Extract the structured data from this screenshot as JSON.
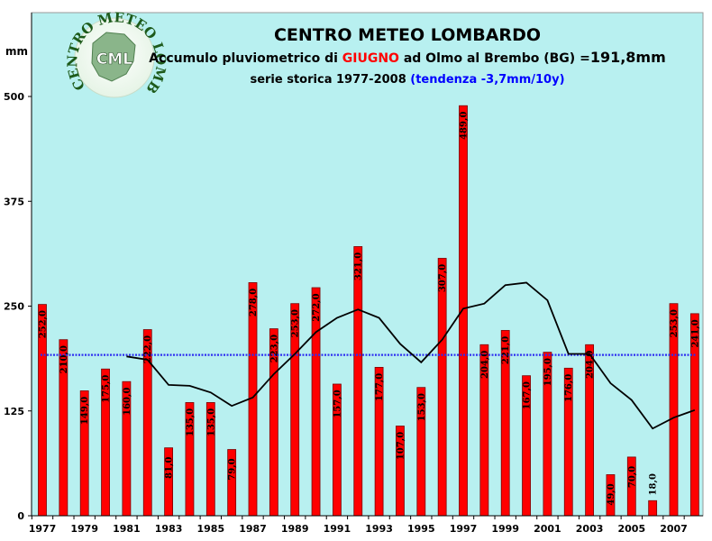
{
  "header": {
    "title": "CENTRO METEO LOMBARDO",
    "subtitle_prefix": "Accumulo pluviometrico di ",
    "subtitle_month": "GIUGNO",
    "subtitle_mid": " ad Olmo al Brembo (BG) =",
    "subtitle_total": "191,8mm",
    "series_text": "serie storica 1977-2008 ",
    "trend_text": "(tendenza -3,7mm/10y)"
  },
  "logo": {
    "ring_text": "CENTRO METEO LOMBARDO",
    "center_text": "CML"
  },
  "colors": {
    "plot_bg": "#b8f0f0",
    "bar_fill": "#ff0000",
    "bar_stroke": "#7a0000",
    "mean_line": "#2e2ef0",
    "moving_avg": "#000000",
    "month_highlight": "#ff0000",
    "trend_text": "#0000ff"
  },
  "chart_data": {
    "type": "bar",
    "title": "CENTRO METEO LOMBARDO",
    "ylabel": "mm",
    "ylim": [
      0,
      600
    ],
    "yticks": [
      0,
      125,
      250,
      375,
      500
    ],
    "x_tick_labels": [
      "1977",
      "1979",
      "1981",
      "1983",
      "1985",
      "1987",
      "1989",
      "1991",
      "1993",
      "1995",
      "1997",
      "1999",
      "2001",
      "2003",
      "2005",
      "2007"
    ],
    "categories": [
      "1977",
      "1978",
      "1979",
      "1980",
      "1981",
      "1982",
      "1983",
      "1984",
      "1985",
      "1986",
      "1987",
      "1988",
      "1989",
      "1990",
      "1991",
      "1992",
      "1993",
      "1994",
      "1995",
      "1996",
      "1997",
      "1998",
      "1999",
      "2000",
      "2001",
      "2002",
      "2003",
      "2004",
      "2005",
      "2006",
      "2007",
      "2008"
    ],
    "values": [
      252.0,
      210.0,
      149.0,
      175.0,
      160.0,
      222.0,
      81.0,
      135.0,
      135.0,
      79.0,
      278.0,
      223.0,
      253.0,
      272.0,
      157.0,
      321.0,
      177.0,
      107.0,
      153.0,
      307.0,
      489.0,
      204.0,
      221.0,
      167.0,
      195.0,
      176.0,
      204.0,
      49.0,
      70.0,
      18.0,
      253.0,
      241.0
    ],
    "data_labels": [
      "252,0",
      "210,0",
      "149,0",
      "175,0",
      "160,0",
      "222,0",
      "81,0",
      "135,0",
      "135,0",
      "79,0",
      "278,0",
      "223,0",
      "253,0",
      "272,0",
      "157,0",
      "321,0",
      "177,0",
      "107,0",
      "153,0",
      "307,0",
      "489,0",
      "204,0",
      "221,0",
      "167,0",
      "195,0",
      "176,0",
      "204,0",
      "49,0",
      "70,0",
      "18,0",
      "253,0",
      "241,0"
    ],
    "mean": 191.8,
    "moving_average": [
      {
        "x": "1981",
        "y": 190
      },
      {
        "x": "1982",
        "y": 186
      },
      {
        "x": "1983",
        "y": 156
      },
      {
        "x": "1984",
        "y": 155
      },
      {
        "x": "1985",
        "y": 147
      },
      {
        "x": "1986",
        "y": 131
      },
      {
        "x": "1987",
        "y": 141
      },
      {
        "x": "1988",
        "y": 169
      },
      {
        "x": "1989",
        "y": 193
      },
      {
        "x": "1990",
        "y": 219
      },
      {
        "x": "1991",
        "y": 236
      },
      {
        "x": "1992",
        "y": 246
      },
      {
        "x": "1993",
        "y": 236
      },
      {
        "x": "1994",
        "y": 205
      },
      {
        "x": "1995",
        "y": 183
      },
      {
        "x": "1996",
        "y": 210
      },
      {
        "x": "1997",
        "y": 247
      },
      {
        "x": "1998",
        "y": 253
      },
      {
        "x": "1999",
        "y": 275
      },
      {
        "x": "2000",
        "y": 278
      },
      {
        "x": "2001",
        "y": 257
      },
      {
        "x": "2002",
        "y": 193
      },
      {
        "x": "2003",
        "y": 193
      },
      {
        "x": "2004",
        "y": 158
      },
      {
        "x": "2005",
        "y": 138
      },
      {
        "x": "2006",
        "y": 104
      },
      {
        "x": "2007",
        "y": 117
      },
      {
        "x": "2008",
        "y": 126
      }
    ]
  }
}
